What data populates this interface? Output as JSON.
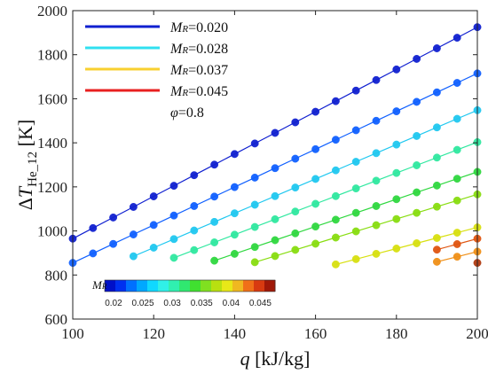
{
  "chart_data": {
    "type": "scatter",
    "xlabel": "q [kJ/kg]",
    "ylabel": "ΔT",
    "ylabel_sub": "He_12",
    "ylabel_unit": "[K]",
    "xlim": [
      100,
      200
    ],
    "ylim": [
      600,
      2000
    ],
    "xticks": [
      "100",
      "120",
      "140",
      "160",
      "180",
      "200"
    ],
    "yticks": [
      "600",
      "800",
      "1000",
      "1200",
      "1400",
      "1600",
      "1800",
      "2000"
    ],
    "grid": false,
    "legend_position": "top-left",
    "legend": [
      {
        "name": "MR=0.020",
        "color": "#1020d0"
      },
      {
        "name": "MR=0.028",
        "color": "#30e0f0"
      },
      {
        "name": "MR=0.037",
        "color": "#f8d030"
      },
      {
        "name": "MR=0.045",
        "color": "#e82020"
      }
    ],
    "legend_extra": "φ=0.8",
    "colorbar": {
      "label": "MR",
      "ticks": [
        "0.02",
        "0.025",
        "0.03",
        "0.035",
        "0.04",
        "0.045"
      ],
      "range": [
        0.0185,
        0.0475
      ]
    },
    "series": [
      {
        "x": [
          100,
          105,
          110,
          115,
          120,
          125,
          130,
          135,
          140,
          145,
          150,
          155,
          160,
          165,
          170,
          175,
          180,
          185,
          190,
          195,
          200
        ],
        "y": [
          965,
          1013,
          1061,
          1109,
          1157,
          1205,
          1253,
          1301,
          1349,
          1397,
          1445,
          1493,
          1541,
          1589,
          1637,
          1685,
          1733,
          1781,
          1829,
          1877,
          1925
        ],
        "color": "#1020d0"
      },
      {
        "x": [
          100,
          105,
          110,
          115,
          120,
          125,
          130,
          135,
          140,
          145,
          150,
          155,
          160,
          165,
          170,
          175,
          180,
          185,
          190,
          195,
          200
        ],
        "y": [
          855,
          898,
          941,
          984,
          1027,
          1070,
          1113,
          1156,
          1199,
          1242,
          1285,
          1328,
          1371,
          1414,
          1457,
          1500,
          1543,
          1586,
          1629,
          1672,
          1715
        ],
        "color": "#1060ff"
      },
      {
        "x": [
          115,
          120,
          125,
          130,
          135,
          140,
          145,
          150,
          155,
          160,
          165,
          170,
          175,
          180,
          185,
          190,
          195,
          200
        ],
        "y": [
          885,
          924,
          963,
          1002,
          1041,
          1080,
          1119,
          1158,
          1197,
          1236,
          1275,
          1314,
          1353,
          1392,
          1431,
          1470,
          1509,
          1548
        ],
        "color": "#20c8f0"
      },
      {
        "x": [
          125,
          130,
          135,
          140,
          145,
          150,
          155,
          160,
          165,
          170,
          175,
          180,
          185,
          190,
          195,
          200
        ],
        "y": [
          878,
          913,
          948,
          983,
          1018,
          1053,
          1088,
          1123,
          1158,
          1193,
          1228,
          1263,
          1298,
          1333,
          1368,
          1403
        ],
        "color": "#30e8a0"
      },
      {
        "x": [
          135,
          140,
          145,
          150,
          155,
          160,
          165,
          170,
          175,
          180,
          185,
          190,
          195,
          200
        ],
        "y": [
          865,
          896,
          927,
          958,
          989,
          1020,
          1051,
          1082,
          1113,
          1144,
          1175,
          1206,
          1237,
          1268
        ],
        "color": "#30d840"
      },
      {
        "x": [
          145,
          150,
          155,
          160,
          165,
          170,
          175,
          180,
          185,
          190,
          195,
          200
        ],
        "y": [
          858,
          886,
          914,
          942,
          970,
          998,
          1026,
          1054,
          1082,
          1110,
          1138,
          1166
        ],
        "color": "#88dd10"
      },
      {
        "x": [
          165,
          170,
          175,
          180,
          185,
          190,
          195,
          200
        ],
        "y": [
          848,
          872,
          896,
          920,
          944,
          968,
          992,
          1016
        ],
        "color": "#d8e010"
      },
      {
        "x": [
          190,
          195,
          200
        ],
        "y": [
          860,
          883,
          906
        ],
        "color": "#f09018"
      },
      {
        "x": [
          190,
          195,
          200
        ],
        "y": [
          915,
          940,
          965
        ],
        "color": "#e05510"
      },
      {
        "x": [
          200
        ],
        "y": [
          855
        ],
        "color": "#b03a10"
      }
    ]
  }
}
